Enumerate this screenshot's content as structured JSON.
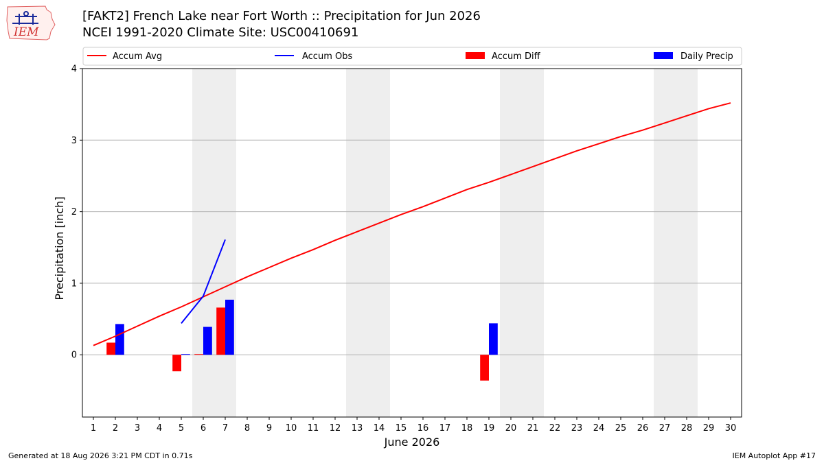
{
  "title": {
    "line1": "[FAKT2] French Lake near Fort Worth :: Precipitation for Jun 2026",
    "line2": "NCEI 1991-2020 Climate Site: USC00410691"
  },
  "logo": {
    "text": "IEM"
  },
  "footer": {
    "left": "Generated at 18 Aug 2026 3:21 PM CDT in 0.71s",
    "right": "IEM Autoplot App #17"
  },
  "colors": {
    "accum_avg": "#ff0000",
    "accum_obs": "#0000ff",
    "accum_diff": "#ff0000",
    "daily_precip": "#0000ff",
    "weekend_shade": "#eeeeee",
    "grid": "#b0b0b0"
  },
  "chart_data": {
    "type": "bar",
    "xlabel": "June 2026",
    "ylabel": "Precipitation [inch]",
    "ylim": [
      -0.87,
      4.0
    ],
    "xlim": [
      0.5,
      30.5
    ],
    "yticks": [
      0,
      1,
      2,
      3,
      4
    ],
    "xticks": [
      1,
      2,
      3,
      4,
      5,
      6,
      7,
      8,
      9,
      10,
      11,
      12,
      13,
      14,
      15,
      16,
      17,
      18,
      19,
      20,
      21,
      22,
      23,
      24,
      25,
      26,
      27,
      28,
      29,
      30
    ],
    "grid": "horizontal",
    "legend_position": "top",
    "weekend_shading": [
      [
        6,
        7
      ],
      [
        13,
        14
      ],
      [
        20,
        21
      ],
      [
        27,
        28
      ]
    ],
    "legend": [
      {
        "label": "Accum Avg",
        "kind": "line",
        "color": "#ff0000"
      },
      {
        "label": "Accum Obs",
        "kind": "line",
        "color": "#0000ff"
      },
      {
        "label": "Accum Diff",
        "kind": "bar",
        "color": "#ff0000"
      },
      {
        "label": "Daily Precip",
        "kind": "bar",
        "color": "#0000ff"
      }
    ],
    "series": [
      {
        "name": "Accum Avg",
        "type": "line",
        "x": [
          1,
          2,
          3,
          4,
          5,
          6,
          7,
          8,
          9,
          10,
          11,
          12,
          13,
          14,
          15,
          16,
          17,
          18,
          19,
          20,
          21,
          22,
          23,
          24,
          25,
          26,
          27,
          28,
          29,
          30
        ],
        "values": [
          0.13,
          0.26,
          0.4,
          0.54,
          0.67,
          0.81,
          0.95,
          1.09,
          1.22,
          1.35,
          1.47,
          1.6,
          1.72,
          1.84,
          1.96,
          2.07,
          2.19,
          2.31,
          2.41,
          2.52,
          2.63,
          2.74,
          2.85,
          2.95,
          3.05,
          3.14,
          3.24,
          3.34,
          3.44,
          3.52
        ]
      },
      {
        "name": "Accum Obs",
        "type": "line",
        "x": [
          5,
          6,
          7
        ],
        "values": [
          0.44,
          0.82,
          1.61
        ]
      },
      {
        "name": "Accum Diff",
        "type": "bar",
        "x": [
          2,
          5,
          6,
          7,
          19
        ],
        "values": [
          0.17,
          -0.23,
          0.01,
          0.66,
          -0.36
        ]
      },
      {
        "name": "Daily Precip",
        "type": "bar",
        "x": [
          2,
          5,
          6,
          7,
          19
        ],
        "values": [
          0.43,
          0.01,
          0.39,
          0.77,
          0.44
        ]
      }
    ]
  }
}
